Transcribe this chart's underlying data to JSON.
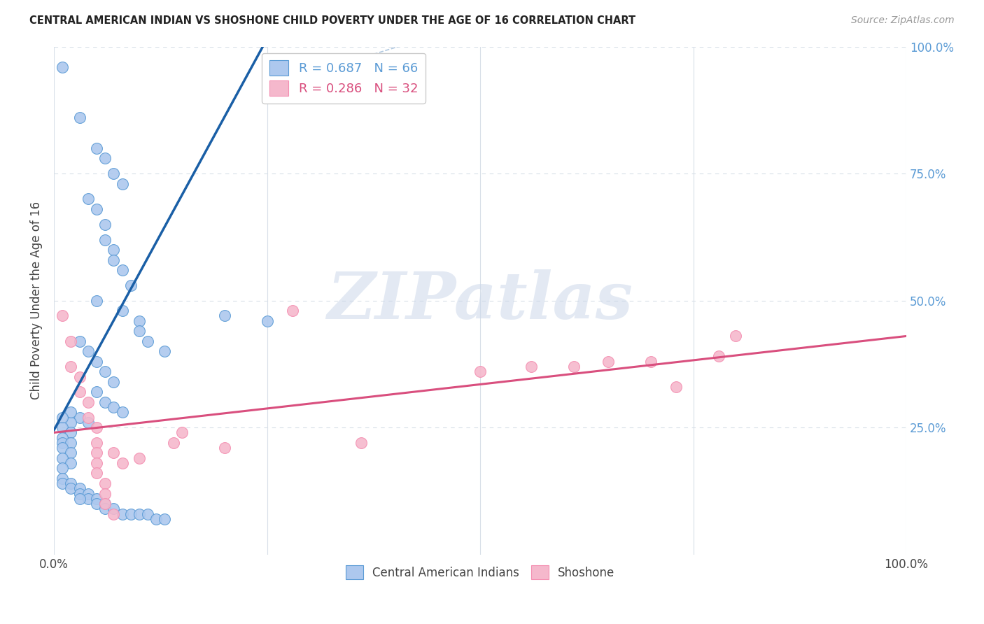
{
  "title": "CENTRAL AMERICAN INDIAN VS SHOSHONE CHILD POVERTY UNDER THE AGE OF 16 CORRELATION CHART",
  "source": "Source: ZipAtlas.com",
  "ylabel": "Child Poverty Under the Age of 16",
  "xlim": [
    0,
    1.0
  ],
  "ylim": [
    0,
    1.0
  ],
  "legend_r_entries": [
    {
      "label": "R = 0.687   N = 66",
      "color": "#5b9bd5"
    },
    {
      "label": "R = 0.286   N = 32",
      "color": "#e05c8a"
    }
  ],
  "watermark": "ZIPatlas",
  "blue_scatter": [
    [
      0.01,
      0.96
    ],
    [
      0.03,
      0.86
    ],
    [
      0.05,
      0.8
    ],
    [
      0.06,
      0.78
    ],
    [
      0.07,
      0.75
    ],
    [
      0.08,
      0.73
    ],
    [
      0.04,
      0.7
    ],
    [
      0.05,
      0.68
    ],
    [
      0.06,
      0.65
    ],
    [
      0.06,
      0.62
    ],
    [
      0.07,
      0.6
    ],
    [
      0.07,
      0.58
    ],
    [
      0.08,
      0.56
    ],
    [
      0.09,
      0.53
    ],
    [
      0.05,
      0.5
    ],
    [
      0.08,
      0.48
    ],
    [
      0.1,
      0.46
    ],
    [
      0.1,
      0.44
    ],
    [
      0.11,
      0.42
    ],
    [
      0.13,
      0.4
    ],
    [
      0.03,
      0.42
    ],
    [
      0.04,
      0.4
    ],
    [
      0.05,
      0.38
    ],
    [
      0.06,
      0.36
    ],
    [
      0.07,
      0.34
    ],
    [
      0.05,
      0.32
    ],
    [
      0.06,
      0.3
    ],
    [
      0.07,
      0.29
    ],
    [
      0.08,
      0.28
    ],
    [
      0.03,
      0.27
    ],
    [
      0.04,
      0.26
    ],
    [
      0.02,
      0.26
    ],
    [
      0.02,
      0.28
    ],
    [
      0.01,
      0.27
    ],
    [
      0.01,
      0.25
    ],
    [
      0.02,
      0.24
    ],
    [
      0.01,
      0.23
    ],
    [
      0.01,
      0.22
    ],
    [
      0.02,
      0.22
    ],
    [
      0.01,
      0.21
    ],
    [
      0.02,
      0.2
    ],
    [
      0.01,
      0.19
    ],
    [
      0.02,
      0.18
    ],
    [
      0.01,
      0.17
    ],
    [
      0.01,
      0.15
    ],
    [
      0.01,
      0.14
    ],
    [
      0.02,
      0.14
    ],
    [
      0.02,
      0.13
    ],
    [
      0.03,
      0.13
    ],
    [
      0.03,
      0.12
    ],
    [
      0.04,
      0.12
    ],
    [
      0.04,
      0.11
    ],
    [
      0.03,
      0.11
    ],
    [
      0.05,
      0.11
    ],
    [
      0.05,
      0.1
    ],
    [
      0.06,
      0.1
    ],
    [
      0.06,
      0.09
    ],
    [
      0.07,
      0.09
    ],
    [
      0.08,
      0.08
    ],
    [
      0.09,
      0.08
    ],
    [
      0.1,
      0.08
    ],
    [
      0.11,
      0.08
    ],
    [
      0.12,
      0.07
    ],
    [
      0.13,
      0.07
    ],
    [
      0.25,
      0.46
    ],
    [
      0.2,
      0.47
    ]
  ],
  "pink_scatter": [
    [
      0.01,
      0.47
    ],
    [
      0.02,
      0.42
    ],
    [
      0.02,
      0.37
    ],
    [
      0.03,
      0.35
    ],
    [
      0.03,
      0.32
    ],
    [
      0.04,
      0.3
    ],
    [
      0.04,
      0.27
    ],
    [
      0.05,
      0.25
    ],
    [
      0.05,
      0.22
    ],
    [
      0.05,
      0.2
    ],
    [
      0.05,
      0.18
    ],
    [
      0.05,
      0.16
    ],
    [
      0.06,
      0.14
    ],
    [
      0.06,
      0.12
    ],
    [
      0.06,
      0.1
    ],
    [
      0.07,
      0.08
    ],
    [
      0.07,
      0.2
    ],
    [
      0.08,
      0.18
    ],
    [
      0.1,
      0.19
    ],
    [
      0.14,
      0.22
    ],
    [
      0.15,
      0.24
    ],
    [
      0.2,
      0.21
    ],
    [
      0.28,
      0.48
    ],
    [
      0.36,
      0.22
    ],
    [
      0.5,
      0.36
    ],
    [
      0.56,
      0.37
    ],
    [
      0.61,
      0.37
    ],
    [
      0.65,
      0.38
    ],
    [
      0.7,
      0.38
    ],
    [
      0.73,
      0.33
    ],
    [
      0.78,
      0.39
    ],
    [
      0.8,
      0.43
    ]
  ],
  "blue_line": [
    [
      0.0,
      0.245
    ],
    [
      0.245,
      1.0
    ]
  ],
  "pink_line": [
    [
      0.0,
      0.24
    ],
    [
      1.0,
      0.43
    ]
  ],
  "diagonal_line": [
    [
      0.25,
      0.92
    ],
    [
      0.5,
      1.05
    ]
  ],
  "blue_color": "#5b9bd5",
  "pink_color": "#f48fb1",
  "blue_scatter_color": "#adc8ee",
  "pink_scatter_color": "#f5b8cc",
  "blue_line_color": "#1a5fa6",
  "pink_line_color": "#d94f7e",
  "diag_line_color": "#b0c8e0",
  "background_color": "#ffffff",
  "grid_color": "#d8dfe8"
}
